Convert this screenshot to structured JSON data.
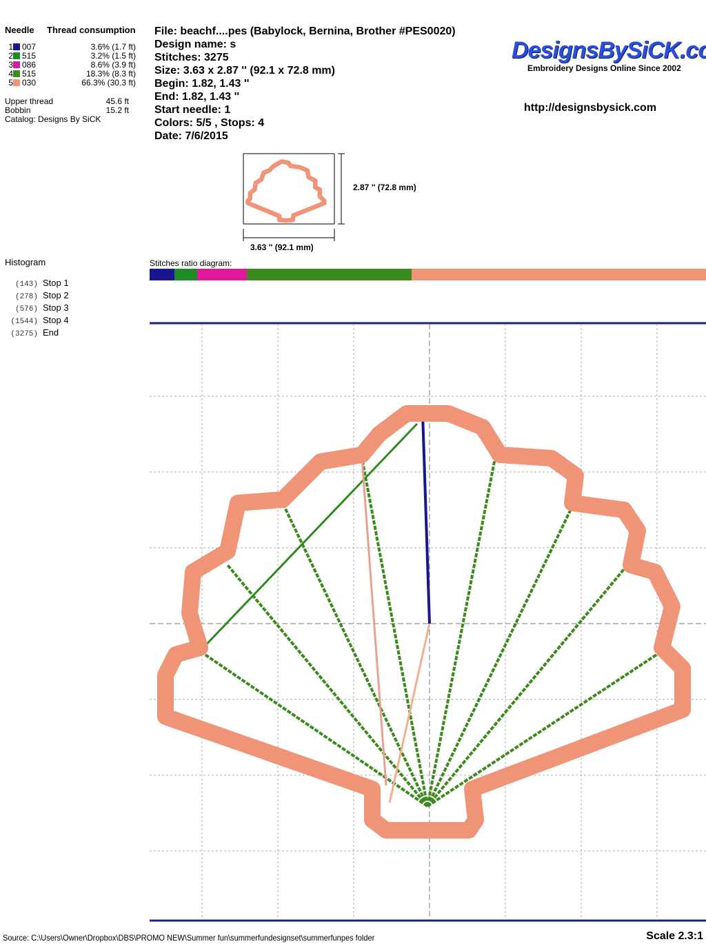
{
  "thread_table": {
    "header_needle": "Needle",
    "header_consumption": "Thread consumption",
    "rows": [
      {
        "needle": "1",
        "code": "007",
        "color": "#1a1490",
        "consumption": "3.6% (1.7 ft)"
      },
      {
        "needle": "2",
        "code": "515",
        "color": "#1f8a2a",
        "consumption": "3.2% (1.5 ft)"
      },
      {
        "needle": "3",
        "code": "086",
        "color": "#e0189a",
        "consumption": "8.6% (3.9 ft)"
      },
      {
        "needle": "4",
        "code": "515",
        "color": "#3d8a1e",
        "consumption": "18.3% (8.3 ft)"
      },
      {
        "needle": "5",
        "code": "030",
        "color": "#f09478",
        "consumption": "66.3% (30.3 ft)"
      }
    ],
    "upper_thread_label": "Upper thread",
    "upper_thread_value": "45.6 ft",
    "bobbin_label": "Bobbin",
    "bobbin_value": "15.2 ft",
    "catalog": "Catalog: Designs By SiCK"
  },
  "info": {
    "file": "File: beachf....pes  (Babylock, Bernina, Brother #PES0020)",
    "design_name": "Design name: s",
    "stitches": "Stitches: 3275",
    "size": "Size: 3.63 x 2.87 '' (92.1 x 72.8 mm)",
    "begin": "Begin: 1.82, 1.43 ''",
    "end": "End: 1.82, 1.43 ''",
    "start_needle": "Start needle: 1",
    "colors_stops": "Colors: 5/5 , Stops: 4",
    "date": "Date: 7/6/2015"
  },
  "brand": {
    "logo": "DesignsBySiCK.com",
    "tagline": "Embroidery Designs Online Since 2002",
    "url": "http://designsbysick.com"
  },
  "thumbnail": {
    "height_label": "2.87 '' (72.8 mm)",
    "width_label": "3.63 '' (92.1 mm)"
  },
  "histogram": {
    "title": "Histogram",
    "items": [
      {
        "count": "(143)",
        "label": "Stop 1"
      },
      {
        "count": "(278)",
        "label": "Stop 2"
      },
      {
        "count": "(576)",
        "label": "Stop 3"
      },
      {
        "count": "(1544)",
        "label": "Stop 4"
      },
      {
        "count": "(3275)",
        "label": "End"
      }
    ]
  },
  "ratio": {
    "title": "Stitches ratio diagram:",
    "segments": [
      {
        "color": "#1a1490",
        "percent": 4.4
      },
      {
        "color": "#1f8a2a",
        "percent": 4.1
      },
      {
        "color": "#e0189a",
        "percent": 9.0
      },
      {
        "color": "#3d8a1e",
        "percent": 29.6
      },
      {
        "color": "#f09478",
        "percent": 52.9
      }
    ]
  },
  "footer": {
    "source": "Source: C:\\Users\\Owner\\Dropbox\\DBS\\PROMO NEW\\Summer fun\\summerfundesignset\\summerfunpes folder",
    "scale": "Scale 2.3:1"
  }
}
